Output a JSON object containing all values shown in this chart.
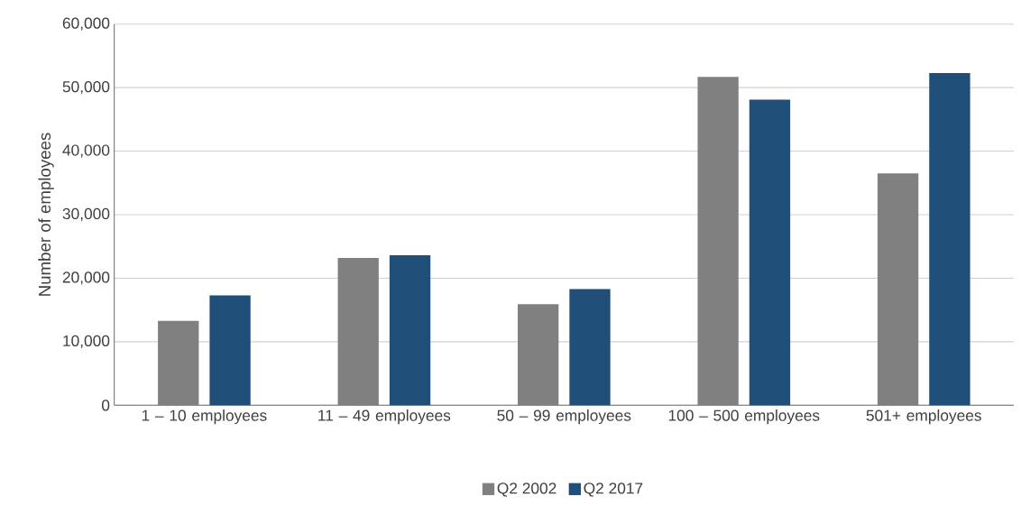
{
  "chart_data": {
    "type": "bar",
    "ylabel": "Number of employees",
    "categories": [
      "1 – 10 employees",
      "11 – 49 employees",
      "50 – 99 employees",
      "100 – 500 employees",
      "501+ employees"
    ],
    "series": [
      {
        "name": "Q2 2002",
        "color": "#808080",
        "values": [
          13300,
          23200,
          15900,
          51700,
          36500
        ]
      },
      {
        "name": "Q2 2017",
        "color": "#1f4e79",
        "values": [
          17300,
          23600,
          18300,
          48100,
          52300
        ]
      }
    ],
    "ylim": [
      0,
      60000
    ],
    "yticks": [
      0,
      {
        "value": 10000,
        "label": "10,000"
      },
      {
        "value": 20000,
        "label": "20,000"
      },
      {
        "value": 30000,
        "label": "30,000"
      },
      {
        "value": 40000,
        "label": "40,000"
      },
      {
        "value": 50000,
        "label": "50,000"
      },
      {
        "value": 60000,
        "label": "60,000"
      }
    ],
    "grid": "y",
    "legend": "bottom"
  }
}
